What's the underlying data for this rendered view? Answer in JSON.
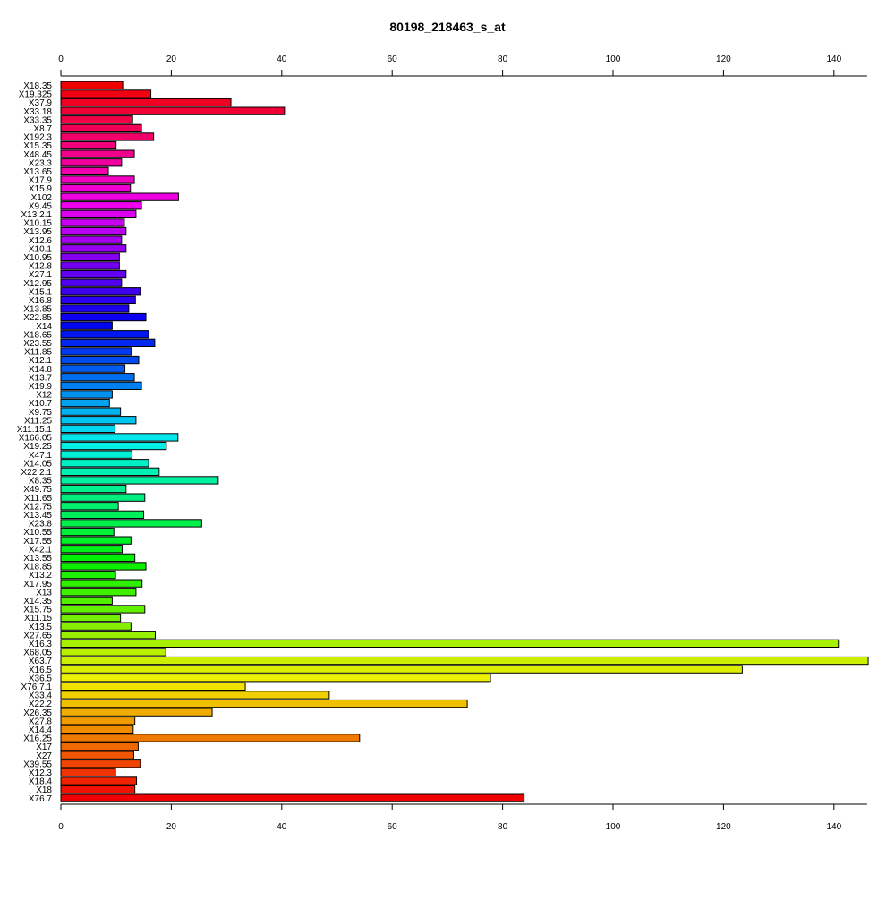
{
  "chart_data": {
    "type": "bar",
    "orientation": "horizontal",
    "title": "80198_218463_s_at",
    "xlabel": "",
    "ylabel": "",
    "xlim": [
      0,
      146
    ],
    "x_ticks": [
      0,
      20,
      40,
      60,
      80,
      100,
      120,
      140
    ],
    "axes": [
      "top",
      "bottom"
    ],
    "grid": false,
    "legend": "none",
    "bar_outline_color": "#000000",
    "bar_color_scheme": "rainbow",
    "categories": [
      "X18.35",
      "X19.325",
      "X37.9",
      "X33.18",
      "X33.35",
      "X8.7",
      "X192.3",
      "X15.35",
      "X48.45",
      "X23.3",
      "X13.65",
      "X17.9",
      "X15.9",
      "X102",
      "X9.45",
      "X13.2.1",
      "X10.15",
      "X13.95",
      "X12.6",
      "X10.1",
      "X10.95",
      "X12.8",
      "X27.1",
      "X12.95",
      "X15.1",
      "X16.8",
      "X13.85",
      "X22.85",
      "X14",
      "X18.65",
      "X23.55",
      "X11.85",
      "X12.1",
      "X14.8",
      "X13.7",
      "X19.9",
      "X12",
      "X10.7",
      "X9.75",
      "X11.25",
      "X11.15.1",
      "X166.05",
      "X19.25",
      "X47.1",
      "X14.05",
      "X22.2.1",
      "X8.35",
      "X49.75",
      "X11.65",
      "X12.75",
      "X13.45",
      "X23.8",
      "X10.55",
      "X17.55",
      "X42.1",
      "X13.55",
      "X18.85",
      "X13.2",
      "X17.95",
      "X13",
      "X14.35",
      "X15.75",
      "X11.15",
      "X13.5",
      "X27.65",
      "X16.3",
      "X68.05",
      "X63.7",
      "X16.5",
      "X36.5",
      "X76.7.1",
      "X33.4",
      "X22.2",
      "X26.35",
      "X27.8",
      "X14.4",
      "X16.25",
      "X17",
      "X27",
      "X39.55",
      "X12.3",
      "X18.4",
      "X18",
      "X76.7"
    ],
    "values": [
      11.2,
      16.3,
      30.8,
      40.5,
      13.0,
      14.6,
      16.8,
      10.0,
      13.3,
      11.0,
      8.6,
      13.3,
      12.6,
      21.3,
      14.6,
      13.6,
      11.5,
      11.8,
      11.0,
      11.8,
      10.6,
      10.6,
      11.8,
      11.0,
      14.4,
      13.5,
      12.3,
      15.4,
      9.3,
      15.9,
      17.0,
      12.8,
      14.1,
      11.6,
      13.3,
      14.6,
      9.3,
      8.8,
      10.8,
      13.6,
      9.8,
      21.2,
      19.1,
      12.9,
      15.9,
      17.8,
      28.5,
      11.8,
      15.2,
      10.4,
      15.0,
      25.5,
      9.6,
      12.7,
      11.1,
      13.4,
      15.4,
      9.9,
      14.7,
      13.6,
      9.3,
      15.2,
      10.8,
      12.7,
      17.1,
      140.8,
      19.0,
      146.2,
      123.4,
      77.8,
      33.4,
      48.6,
      73.6,
      27.4,
      13.4,
      13.1,
      54.1,
      14.0,
      13.2,
      14.4,
      9.9,
      13.7,
      13.4,
      83.9
    ]
  }
}
